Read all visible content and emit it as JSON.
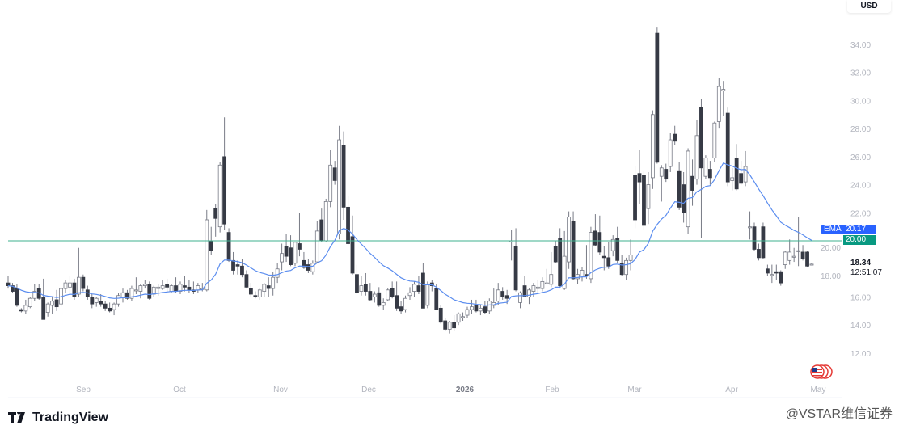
{
  "header": {
    "currency": "USD"
  },
  "price_labels": {
    "ema_tag": "EMA",
    "ema_value": "20.17",
    "line_value": "20.00",
    "last_price": "18.34",
    "countdown": "12:51:07"
  },
  "footer": {
    "logo_text": "TradingView",
    "watermark": "@VSTAR维信证券"
  },
  "colors": {
    "ema": "#5b8def",
    "horizontal_line": "#3fb28f",
    "up_candle_fill": "#ffffff",
    "down_candle_fill": "#363a45",
    "wick": "#787b86",
    "ema_badge": "#2962ff",
    "line_badge": "#089981"
  },
  "icons": {
    "flag": "us-flag-icon",
    "logo": "tradingview-logo-icon"
  },
  "chart_data": {
    "type": "candlestick",
    "indicator": {
      "name": "EMA",
      "last_value": 20.17
    },
    "horizontal_line": 20.0,
    "ylim": [
      10.8,
      35.5
    ],
    "yticks": [
      12,
      14,
      16,
      18,
      20,
      22,
      24,
      26,
      28,
      30,
      32,
      34
    ],
    "ytick_labels": [
      "12.00",
      "14.00",
      "16.00",
      "18.00",
      "20.00",
      "22.00",
      "24.00",
      "26.00",
      "28.00",
      "30.00",
      "32.00",
      "34.00"
    ],
    "xtick_labels": [
      "Sep",
      "Oct",
      "Nov",
      "Dec",
      "2026",
      "Feb",
      "Mar",
      "Apr",
      "May"
    ],
    "grid": false,
    "candles_ohlc": [
      [
        17.0,
        17.5,
        16.6,
        16.8
      ],
      [
        16.8,
        17.0,
        16.3,
        16.4
      ],
      [
        16.6,
        16.9,
        15.3,
        15.4
      ],
      [
        15.1,
        15.2,
        14.9,
        15.0
      ],
      [
        15.0,
        15.8,
        14.8,
        15.4
      ],
      [
        15.3,
        16.0,
        15.2,
        15.9
      ],
      [
        15.9,
        16.9,
        15.7,
        16.4
      ],
      [
        16.6,
        16.9,
        15.8,
        15.9
      ],
      [
        16.0,
        17.3,
        14.4,
        14.4
      ],
      [
        14.9,
        15.6,
        14.6,
        15.5
      ],
      [
        15.4,
        16.0,
        14.8,
        15.7
      ],
      [
        15.8,
        16.5,
        15.0,
        15.3
      ],
      [
        15.5,
        16.7,
        15.3,
        16.6
      ],
      [
        16.6,
        17.2,
        16.3,
        17.0
      ],
      [
        16.7,
        17.5,
        16.2,
        17.0
      ],
      [
        17.0,
        17.3,
        15.8,
        16.0
      ],
      [
        16.2,
        19.5,
        16.0,
        17.4
      ],
      [
        17.4,
        17.6,
        16.4,
        16.6
      ],
      [
        16.5,
        16.8,
        15.8,
        16.0
      ],
      [
        16.0,
        16.2,
        15.2,
        15.5
      ],
      [
        15.6,
        16.0,
        15.3,
        15.9
      ],
      [
        15.7,
        16.2,
        15.3,
        15.5
      ],
      [
        15.5,
        15.7,
        15.0,
        15.2
      ],
      [
        15.2,
        15.6,
        14.9,
        15.0
      ],
      [
        15.1,
        15.6,
        14.7,
        15.5
      ],
      [
        15.5,
        16.3,
        15.3,
        16.1
      ],
      [
        16.0,
        16.6,
        15.6,
        16.3
      ],
      [
        16.3,
        16.5,
        15.8,
        15.9
      ],
      [
        15.9,
        16.8,
        15.7,
        16.6
      ],
      [
        16.5,
        17.4,
        16.2,
        16.5
      ],
      [
        16.4,
        16.9,
        15.9,
        16.8
      ],
      [
        16.8,
        17.2,
        16.6,
        16.9
      ],
      [
        16.9,
        17.1,
        15.8,
        15.9
      ],
      [
        16.2,
        16.8,
        16.0,
        16.7
      ],
      [
        16.6,
        16.9,
        16.1,
        16.7
      ],
      [
        16.6,
        17.2,
        16.5,
        16.8
      ],
      [
        16.9,
        17.3,
        16.4,
        16.7
      ],
      [
        16.4,
        16.9,
        16.3,
        16.8
      ],
      [
        16.8,
        17.4,
        16.3,
        16.4
      ],
      [
        16.4,
        17.1,
        16.2,
        16.9
      ],
      [
        16.8,
        17.5,
        16.4,
        16.7
      ],
      [
        16.7,
        17.2,
        16.3,
        16.5
      ],
      [
        16.5,
        17.1,
        16.2,
        16.4
      ],
      [
        16.5,
        17.0,
        16.3,
        16.8
      ],
      [
        16.6,
        17.0,
        16.4,
        16.6
      ],
      [
        16.5,
        22.2,
        16.4,
        21.5
      ],
      [
        20.0,
        21.0,
        19.0,
        19.3
      ],
      [
        22.3,
        22.6,
        20.3,
        21.6
      ],
      [
        21.0,
        25.6,
        20.6,
        25.4
      ],
      [
        26.0,
        28.8,
        20.8,
        21.2
      ],
      [
        20.6,
        20.9,
        18.5,
        18.6
      ],
      [
        18.6,
        19.2,
        17.6,
        17.9
      ],
      [
        18.3,
        18.6,
        17.6,
        18.2
      ],
      [
        18.2,
        18.7,
        17.4,
        17.6
      ],
      [
        17.6,
        17.9,
        16.6,
        16.7
      ],
      [
        16.6,
        17.0,
        16.0,
        16.2
      ],
      [
        16.1,
        16.4,
        15.9,
        16.0
      ],
      [
        16.0,
        16.6,
        15.8,
        16.5
      ],
      [
        16.4,
        17.0,
        16.0,
        16.9
      ],
      [
        16.8,
        17.4,
        16.0,
        16.6
      ],
      [
        16.6,
        17.8,
        16.1,
        17.4
      ],
      [
        17.4,
        18.4,
        17.0,
        18.0
      ],
      [
        18.5,
        19.8,
        17.9,
        19.1
      ],
      [
        19.6,
        20.5,
        18.5,
        18.9
      ],
      [
        19.5,
        20.4,
        18.2,
        18.3
      ],
      [
        18.4,
        19.9,
        18.2,
        19.9
      ],
      [
        19.8,
        22.0,
        18.9,
        19.4
      ],
      [
        18.6,
        19.2,
        18.0,
        18.1
      ],
      [
        18.3,
        18.7,
        17.7,
        17.9
      ],
      [
        17.8,
        18.6,
        17.6,
        18.4
      ],
      [
        18.5,
        21.4,
        18.4,
        20.7
      ],
      [
        21.5,
        22.3,
        19.9,
        20.0
      ],
      [
        20.0,
        23.0,
        19.9,
        22.8
      ],
      [
        22.8,
        26.5,
        22.4,
        25.4
      ],
      [
        25.2,
        25.7,
        24.0,
        24.3
      ],
      [
        20.5,
        28.2,
        20.1,
        27.2
      ],
      [
        26.8,
        27.8,
        21.5,
        22.4
      ],
      [
        22.4,
        23.2,
        19.7,
        19.8
      ],
      [
        20.3,
        21.8,
        17.6,
        17.7
      ],
      [
        17.6,
        18.3,
        16.2,
        16.3
      ],
      [
        16.4,
        17.5,
        16.1,
        16.8
      ],
      [
        16.9,
        17.7,
        16.1,
        16.4
      ],
      [
        16.4,
        17.0,
        15.7,
        15.8
      ],
      [
        16.0,
        16.4,
        15.6,
        16.2
      ],
      [
        16.3,
        16.7,
        15.3,
        15.4
      ],
      [
        15.4,
        15.9,
        15.1,
        15.6
      ],
      [
        15.8,
        16.6,
        15.7,
        16.5
      ],
      [
        16.6,
        17.1,
        15.9,
        16.0
      ],
      [
        16.1,
        17.1,
        15.0,
        15.2
      ],
      [
        15.3,
        15.7,
        14.8,
        15.0
      ],
      [
        15.1,
        16.1,
        14.9,
        15.9
      ],
      [
        16.1,
        16.7,
        15.8,
        16.3
      ],
      [
        16.4,
        17.1,
        16.0,
        16.9
      ],
      [
        16.8,
        17.5,
        16.2,
        16.4
      ],
      [
        17.7,
        18.4,
        15.2,
        15.2
      ],
      [
        15.4,
        17.1,
        15.2,
        16.9
      ],
      [
        17.0,
        17.2,
        16.4,
        16.8
      ],
      [
        16.6,
        16.9,
        15.1,
        15.1
      ],
      [
        15.2,
        15.4,
        14.1,
        14.2
      ],
      [
        14.3,
        14.5,
        13.6,
        13.7
      ],
      [
        13.7,
        14.3,
        13.4,
        14.2
      ],
      [
        14.2,
        14.7,
        13.6,
        13.8
      ],
      [
        14.2,
        14.9,
        14.0,
        14.8
      ],
      [
        14.6,
        14.9,
        14.3,
        14.6
      ],
      [
        14.7,
        15.3,
        14.5,
        15.1
      ],
      [
        15.1,
        15.8,
        14.8,
        15.3
      ],
      [
        15.4,
        15.8,
        14.9,
        15.0
      ],
      [
        15.0,
        15.4,
        14.7,
        15.2
      ],
      [
        15.3,
        15.7,
        14.8,
        14.9
      ],
      [
        15.0,
        15.9,
        14.8,
        15.7
      ],
      [
        15.4,
        16.6,
        15.2,
        15.6
      ],
      [
        15.7,
        17.0,
        15.4,
        16.5
      ],
      [
        16.4,
        16.7,
        15.8,
        16.0
      ],
      [
        16.1,
        16.5,
        15.5,
        15.9
      ],
      [
        20.0,
        20.8,
        18.6,
        20.0
      ],
      [
        19.6,
        20.9,
        16.4,
        16.5
      ],
      [
        15.6,
        16.4,
        15.2,
        16.3
      ],
      [
        16.8,
        17.5,
        16.0,
        16.0
      ],
      [
        16.0,
        16.6,
        15.5,
        16.5
      ],
      [
        16.4,
        17.0,
        16.0,
        16.8
      ],
      [
        16.6,
        17.2,
        16.3,
        16.7
      ],
      [
        16.6,
        17.4,
        16.4,
        17.1
      ],
      [
        17.0,
        18.0,
        16.9,
        17.0
      ],
      [
        16.9,
        19.2,
        16.7,
        17.6
      ],
      [
        19.6,
        20.0,
        18.4,
        18.5
      ],
      [
        20.2,
        20.9,
        16.6,
        16.8
      ],
      [
        16.6,
        20.7,
        16.5,
        18.9
      ],
      [
        18.5,
        22.1,
        18.0,
        21.7
      ],
      [
        21.4,
        22.1,
        17.2,
        17.3
      ],
      [
        17.3,
        18.0,
        16.9,
        17.6
      ],
      [
        17.5,
        18.1,
        17.1,
        17.9
      ],
      [
        17.6,
        19.7,
        17.3,
        17.5
      ],
      [
        17.3,
        21.0,
        17.0,
        20.6
      ],
      [
        20.7,
        21.9,
        19.6,
        19.7
      ],
      [
        20.6,
        21.8,
        19.0,
        19.2
      ],
      [
        18.9,
        19.6,
        17.9,
        18.8
      ],
      [
        18.8,
        19.9,
        18.0,
        18.2
      ],
      [
        19.3,
        20.4,
        18.9,
        20.1
      ],
      [
        20.2,
        21.0,
        18.4,
        18.6
      ],
      [
        18.4,
        19.0,
        17.5,
        17.6
      ],
      [
        17.6,
        18.8,
        17.2,
        18.6
      ],
      [
        18.6,
        20.1,
        17.9,
        19.0
      ],
      [
        24.7,
        25.3,
        20.9,
        21.5
      ],
      [
        24.8,
        26.5,
        22.6,
        24.2
      ],
      [
        24.7,
        25.0,
        20.8,
        21.1
      ],
      [
        22.3,
        24.9,
        21.2,
        24.0
      ],
      [
        24.5,
        29.3,
        23.7,
        29.0
      ],
      [
        34.8,
        35.2,
        25.5,
        25.6
      ],
      [
        24.6,
        25.4,
        22.8,
        25.2
      ],
      [
        25.1,
        25.5,
        24.2,
        24.4
      ],
      [
        25.3,
        27.7,
        24.9,
        27.2
      ],
      [
        27.6,
        28.2,
        26.8,
        27.1
      ],
      [
        25.0,
        25.6,
        22.2,
        22.4
      ],
      [
        24.0,
        24.9,
        21.3,
        22.0
      ],
      [
        21.0,
        26.6,
        20.5,
        26.4
      ],
      [
        24.6,
        25.8,
        22.5,
        23.6
      ],
      [
        24.4,
        28.6,
        24.0,
        27.5
      ],
      [
        29.5,
        30.1,
        20.2,
        25.2
      ],
      [
        24.6,
        26.1,
        24.4,
        25.9
      ],
      [
        25.1,
        25.7,
        24.0,
        24.5
      ],
      [
        25.9,
        28.5,
        25.6,
        28.4
      ],
      [
        28.5,
        31.6,
        28.0,
        31.0
      ],
      [
        30.7,
        31.4,
        28.9,
        30.8
      ],
      [
        29.1,
        29.5,
        23.9,
        24.2
      ],
      [
        24.3,
        25.2,
        23.6,
        24.5
      ],
      [
        25.9,
        26.9,
        23.6,
        23.7
      ],
      [
        24.8,
        25.7,
        24.0,
        24.1
      ],
      [
        24.2,
        26.4,
        23.9,
        25.3
      ],
      [
        21.0,
        22.1,
        20.1,
        21.0
      ],
      [
        21.0,
        21.3,
        19.3,
        19.4
      ],
      [
        19.4,
        19.8,
        18.6,
        18.8
      ],
      [
        21.0,
        21.3,
        18.7,
        18.8
      ],
      [
        18.0,
        18.3,
        17.5,
        17.7
      ],
      [
        17.6,
        18.3,
        17.0,
        17.6
      ],
      [
        17.8,
        18.3,
        17.2,
        17.7
      ],
      [
        17.8,
        17.9,
        16.8,
        17.0
      ],
      [
        18.3,
        19.3,
        18.0,
        19.2
      ],
      [
        18.6,
        20.1,
        18.3,
        19.2
      ],
      [
        18.9,
        19.5,
        18.5,
        18.9
      ],
      [
        19.3,
        21.7,
        18.2,
        19.3
      ],
      [
        19.2,
        19.7,
        18.6,
        18.7
      ],
      [
        19.2,
        19.3,
        18.1,
        18.2
      ],
      [
        18.3,
        18.4,
        18.3,
        18.34
      ]
    ]
  }
}
